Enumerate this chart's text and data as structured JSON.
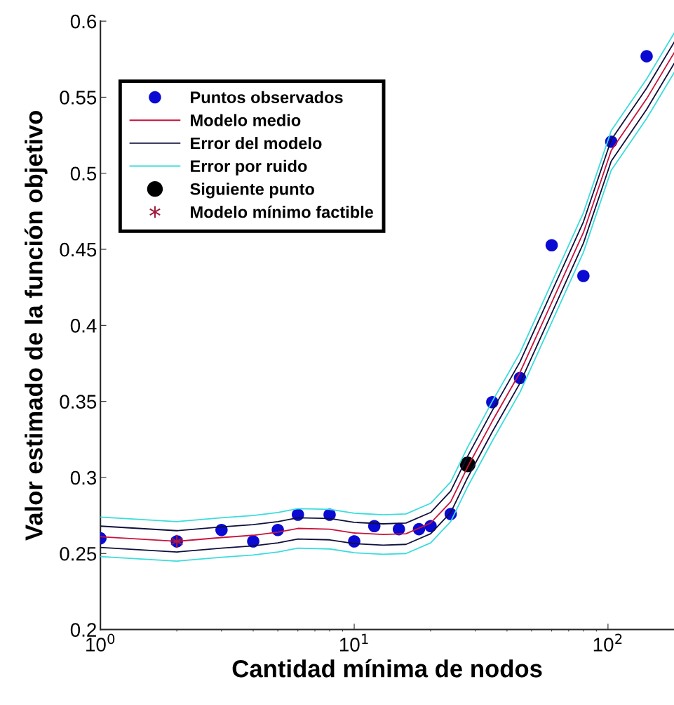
{
  "chart_data": {
    "type": "line",
    "xlabel": "Cantidad mínima de nodos",
    "ylabel": "Valor estimado de la función objetivo",
    "log": "x",
    "xlim": [
      1,
      182
    ],
    "xticks": [
      {
        "value": 1,
        "label": "10$^{0}$"
      },
      {
        "value": 10,
        "label": "10$^{1}$"
      },
      {
        "value": 100,
        "label": "10$^{2}$"
      }
    ],
    "ylim": [
      0.2,
      0.6
    ],
    "yticks": [
      0.2,
      0.25,
      0.3,
      0.35,
      0.4,
      0.45,
      0.5,
      0.55,
      0.6
    ],
    "grid": false,
    "legend": "top left",
    "series": [
      {
        "name": "Puntos observados",
        "type": "scatter",
        "marker": "circle",
        "color": "#0a0ad2",
        "x": [
          1,
          2,
          3,
          4,
          5,
          6,
          8,
          10,
          12,
          15,
          18,
          20,
          24,
          35,
          45,
          60,
          80,
          103,
          142
        ],
        "values": [
          0.26,
          0.258,
          0.2655,
          0.258,
          0.2655,
          0.2755,
          0.2755,
          0.258,
          0.268,
          0.266,
          0.266,
          0.268,
          0.276,
          0.3495,
          0.3654,
          0.4527,
          0.4325,
          0.5208,
          0.5769
        ]
      },
      {
        "name": "Modelo medio",
        "color": "#c8143c",
        "x": [
          1,
          2,
          3,
          4,
          5,
          6,
          8,
          10,
          13,
          16,
          20,
          24,
          28,
          35,
          45,
          60,
          80,
          103,
          142,
          182
        ],
        "values": [
          0.261,
          0.258,
          0.2605,
          0.262,
          0.264,
          0.2665,
          0.266,
          0.2635,
          0.2625,
          0.263,
          0.27,
          0.284,
          0.307,
          0.337,
          0.369,
          0.415,
          0.461,
          0.515,
          0.549,
          0.579
        ]
      },
      {
        "name": "Error del modelo",
        "color": "#10103c",
        "x": [
          1,
          2,
          3,
          4,
          5,
          6,
          8,
          10,
          13,
          16,
          20,
          24,
          28,
          35,
          45,
          60,
          80,
          103,
          142,
          182
        ],
        "values": [
          0.268,
          0.265,
          0.2675,
          0.269,
          0.271,
          0.2735,
          0.273,
          0.2705,
          0.2695,
          0.27,
          0.277,
          0.291,
          0.314,
          0.344,
          0.376,
          0.422,
          0.468,
          0.522,
          0.556,
          0.586
        ]
      },
      {
        "name": "Error por ruido",
        "color": "#3cdcdc",
        "x": [
          1,
          2,
          3,
          4,
          5,
          6,
          8,
          10,
          13,
          16,
          20,
          24,
          28,
          35,
          45,
          60,
          80,
          103,
          142,
          182
        ],
        "values": [
          0.274,
          0.271,
          0.2735,
          0.275,
          0.277,
          0.2795,
          0.279,
          0.2765,
          0.2755,
          0.276,
          0.283,
          0.297,
          0.32,
          0.35,
          0.382,
          0.428,
          0.474,
          0.528,
          0.562,
          0.592
        ]
      },
      {
        "name": "Siguiente punto",
        "type": "scatter",
        "marker": "circle",
        "color": "#000000",
        "x": [
          28
        ],
        "values": [
          0.3086
        ]
      },
      {
        "name": "Modelo mínimo factible",
        "type": "scatter",
        "marker": "cross",
        "color": "#a01c3c",
        "x": [
          2
        ],
        "values": [
          0.258
        ]
      },
      {
        "color": "#10103c",
        "x": [
          1,
          2,
          3,
          4,
          5,
          6,
          8,
          10,
          13,
          16,
          20,
          24,
          28,
          35,
          45,
          60,
          80,
          103,
          142,
          182
        ],
        "values": [
          0.254,
          0.251,
          0.2535,
          0.255,
          0.257,
          0.2595,
          0.259,
          0.2565,
          0.2555,
          0.256,
          0.263,
          0.277,
          0.3,
          0.33,
          0.362,
          0.408,
          0.454,
          0.508,
          0.542,
          0.572
        ]
      },
      {
        "color": "#3cdcdc",
        "x": [
          1,
          2,
          3,
          4,
          5,
          6,
          8,
          10,
          13,
          16,
          20,
          24,
          28,
          35,
          45,
          60,
          80,
          103,
          142,
          182
        ],
        "values": [
          0.248,
          0.245,
          0.2475,
          0.249,
          0.251,
          0.2535,
          0.253,
          0.2505,
          0.2495,
          0.25,
          0.257,
          0.271,
          0.294,
          0.324,
          0.356,
          0.402,
          0.448,
          0.502,
          0.536,
          0.566
        ]
      }
    ]
  }
}
